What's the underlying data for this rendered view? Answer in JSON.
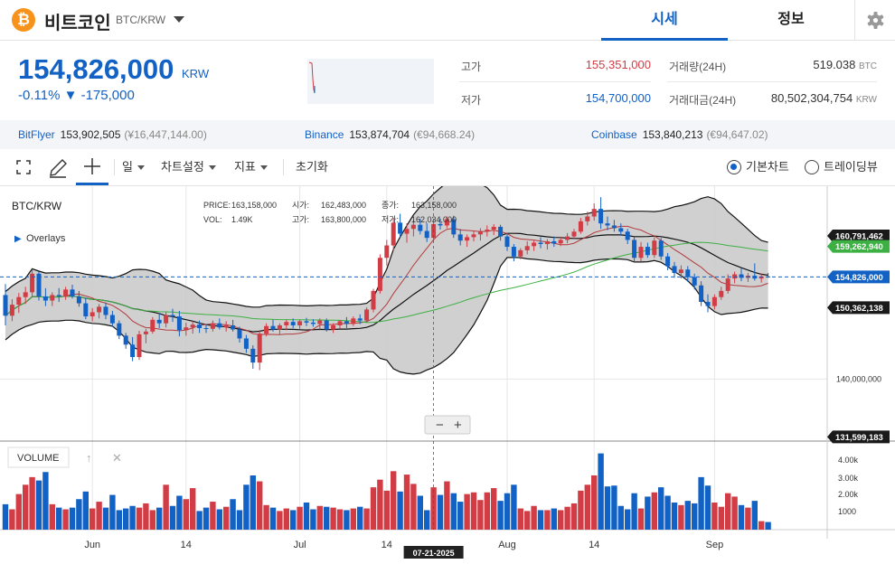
{
  "header": {
    "coin_symbol_glyph": "₿",
    "coin_name": "비트코인",
    "pair": "BTC/KRW",
    "tabs": [
      {
        "label": "시세"
      },
      {
        "label": "정보"
      }
    ]
  },
  "summary": {
    "price": "154,826,000",
    "price_unit": "KRW",
    "change": "-0.11% ▼ -175,000",
    "high_label": "고가",
    "high": "155,351,000",
    "low_label": "저가",
    "low": "154,700,000",
    "volume_label": "거래량(24H)",
    "volume": "519.038",
    "volume_unit": "BTC",
    "amount_label": "거래대금(24H)",
    "amount": "80,502,304,754",
    "amount_unit": "KRW"
  },
  "exchanges": [
    {
      "name": "BitFlyer",
      "price": "153,902,505",
      "sub": "(¥16,447,144.00)"
    },
    {
      "name": "Binance",
      "price": "153,874,704",
      "sub": "(€94,668.24)"
    },
    {
      "name": "Coinbase",
      "price": "153,840,213",
      "sub": "(€94,647.02)"
    }
  ],
  "toolbar": {
    "interval": "일",
    "chart_settings": "차트설정",
    "indicators": "지표",
    "reset": "초기화",
    "basic_chart": "기본차트",
    "tradingview": "트레이딩뷰"
  },
  "colors": {
    "accent": "#1261c4",
    "up": "#d13c45",
    "down": "#1261c4",
    "ma_long": "#3cb043",
    "ma_short": "#b2393c"
  },
  "chart_data": {
    "type": "candlestick",
    "symbol": "BTC/KRW",
    "overlays_label": "Overlays",
    "ohlc_readout": {
      "price_label": "PRICE:",
      "price": "163,158,000",
      "open_label": "시가:",
      "open": "162,483,000",
      "close_label": "종가:",
      "close": "163,158,000",
      "vol_label": "VOL:",
      "vol": "1.49K",
      "high_label": "고가:",
      "high": "163,800,000",
      "low_label": "저가:",
      "low": "162,034,000"
    },
    "x_ticks": [
      {
        "label": "Jun",
        "index": 13
      },
      {
        "label": "14",
        "index": 27
      },
      {
        "label": "Jul",
        "index": 44
      },
      {
        "label": "14",
        "index": 57
      },
      {
        "label": "Aug",
        "index": 75
      },
      {
        "label": "14",
        "index": 88
      },
      {
        "label": "Sep",
        "index": 106
      }
    ],
    "crosshair_date": "07-21-2025",
    "crosshair_index": 64,
    "y_ticks": [
      {
        "label": "140,000,000",
        "value": 140000000
      }
    ],
    "y_range": [
      131000000,
      168000000
    ],
    "price_badges": [
      {
        "label": "160,791,462",
        "value": 160791462,
        "style": "dark"
      },
      {
        "label": "159,262,940",
        "value": 159262940,
        "style": "green"
      },
      {
        "label": "154,826,000",
        "value": 154826000,
        "style": "blue"
      },
      {
        "label": "150,362,138",
        "value": 150362138,
        "style": "dark"
      },
      {
        "label": "131,599,183",
        "value": 131599183,
        "style": "dark"
      }
    ],
    "current_price": 154826000,
    "volume_label": "VOLUME",
    "volume_ticks": [
      "4.00k",
      "3.00k",
      "2.00k",
      "1000"
    ],
    "volume_max": 4800,
    "candles": [
      {
        "o": 152200000,
        "h": 153800000,
        "l": 147800000,
        "c": 149200000,
        "v": 1500
      },
      {
        "o": 149200000,
        "h": 151600000,
        "l": 148400000,
        "c": 150800000,
        "v": 1200
      },
      {
        "o": 150800000,
        "h": 152500000,
        "l": 149600000,
        "c": 151900000,
        "v": 2100
      },
      {
        "o": 151900000,
        "h": 153400000,
        "l": 150900000,
        "c": 152600000,
        "v": 2650
      },
      {
        "o": 152600000,
        "h": 155800000,
        "l": 151900000,
        "c": 155300000,
        "v": 3100
      },
      {
        "o": 155300000,
        "h": 155600000,
        "l": 151400000,
        "c": 152000000,
        "v": 2900
      },
      {
        "o": 152000000,
        "h": 153200000,
        "l": 150600000,
        "c": 151400000,
        "v": 3400
      },
      {
        "o": 151400000,
        "h": 152600000,
        "l": 150600000,
        "c": 152200000,
        "v": 1500
      },
      {
        "o": 152200000,
        "h": 153200000,
        "l": 151200000,
        "c": 152000000,
        "v": 1300
      },
      {
        "o": 152000000,
        "h": 153400000,
        "l": 151500000,
        "c": 153000000,
        "v": 1200
      },
      {
        "o": 153000000,
        "h": 153700000,
        "l": 151700000,
        "c": 152000000,
        "v": 1300
      },
      {
        "o": 152000000,
        "h": 152800000,
        "l": 150500000,
        "c": 151000000,
        "v": 1800
      },
      {
        "o": 151000000,
        "h": 151800000,
        "l": 148700000,
        "c": 149100000,
        "v": 2250
      },
      {
        "o": 149100000,
        "h": 150300000,
        "l": 148400000,
        "c": 149700000,
        "v": 1250
      },
      {
        "o": 149700000,
        "h": 150900000,
        "l": 148800000,
        "c": 150500000,
        "v": 1650
      },
      {
        "o": 150500000,
        "h": 151100000,
        "l": 148700000,
        "c": 149300000,
        "v": 1300
      },
      {
        "o": 149300000,
        "h": 149900000,
        "l": 147600000,
        "c": 148100000,
        "v": 2050
      },
      {
        "o": 148100000,
        "h": 148500000,
        "l": 145800000,
        "c": 146300000,
        "v": 1150
      },
      {
        "o": 146300000,
        "h": 146700000,
        "l": 144400000,
        "c": 145000000,
        "v": 1250
      },
      {
        "o": 145000000,
        "h": 146100000,
        "l": 142600000,
        "c": 143200000,
        "v": 1400
      },
      {
        "o": 143200000,
        "h": 147000000,
        "l": 142800000,
        "c": 146500000,
        "v": 1300
      },
      {
        "o": 146500000,
        "h": 147300000,
        "l": 145200000,
        "c": 146900000,
        "v": 1550
      },
      {
        "o": 146900000,
        "h": 149000000,
        "l": 146600000,
        "c": 148600000,
        "v": 1150
      },
      {
        "o": 148600000,
        "h": 149600000,
        "l": 147400000,
        "c": 148100000,
        "v": 1300
      },
      {
        "o": 148100000,
        "h": 149700000,
        "l": 147500000,
        "c": 149300000,
        "v": 2650
      },
      {
        "o": 149300000,
        "h": 150200000,
        "l": 148300000,
        "c": 149100000,
        "v": 1400
      },
      {
        "o": 149100000,
        "h": 149900000,
        "l": 146200000,
        "c": 147100000,
        "v": 2000
      },
      {
        "o": 147100000,
        "h": 148200000,
        "l": 146300000,
        "c": 147500000,
        "v": 1800
      },
      {
        "o": 147500000,
        "h": 148400000,
        "l": 146600000,
        "c": 147900000,
        "v": 2450
      },
      {
        "o": 147900000,
        "h": 148500000,
        "l": 146700000,
        "c": 147400000,
        "v": 1100
      },
      {
        "o": 147400000,
        "h": 148000000,
        "l": 146700000,
        "c": 147300000,
        "v": 1300
      },
      {
        "o": 147300000,
        "h": 148500000,
        "l": 146900000,
        "c": 148100000,
        "v": 1650
      },
      {
        "o": 148100000,
        "h": 148800000,
        "l": 147200000,
        "c": 147500000,
        "v": 1200
      },
      {
        "o": 147500000,
        "h": 148400000,
        "l": 146900000,
        "c": 147800000,
        "v": 1350
      },
      {
        "o": 147800000,
        "h": 148600000,
        "l": 146900000,
        "c": 147200000,
        "v": 1800
      },
      {
        "o": 147200000,
        "h": 147600000,
        "l": 145300000,
        "c": 145900000,
        "v": 1150
      },
      {
        "o": 145900000,
        "h": 146400000,
        "l": 143800000,
        "c": 144400000,
        "v": 2650
      },
      {
        "o": 144400000,
        "h": 144900000,
        "l": 141500000,
        "c": 142400000,
        "v": 3200
      },
      {
        "o": 142400000,
        "h": 147100000,
        "l": 141300000,
        "c": 146600000,
        "v": 2850
      },
      {
        "o": 146600000,
        "h": 148100000,
        "l": 146200000,
        "c": 147700000,
        "v": 1450
      },
      {
        "o": 147700000,
        "h": 148600000,
        "l": 146900000,
        "c": 147200000,
        "v": 1300
      },
      {
        "o": 147200000,
        "h": 148100000,
        "l": 146500000,
        "c": 147800000,
        "v": 1100
      },
      {
        "o": 147800000,
        "h": 148600000,
        "l": 147100000,
        "c": 148300000,
        "v": 1250
      },
      {
        "o": 148300000,
        "h": 148800000,
        "l": 147400000,
        "c": 147800000,
        "v": 1150
      },
      {
        "o": 147800000,
        "h": 148600000,
        "l": 147300000,
        "c": 148400000,
        "v": 1350
      },
      {
        "o": 148400000,
        "h": 148900000,
        "l": 147700000,
        "c": 148200000,
        "v": 1600
      },
      {
        "o": 148200000,
        "h": 148700000,
        "l": 147600000,
        "c": 148000000,
        "v": 1200
      },
      {
        "o": 148000000,
        "h": 148800000,
        "l": 147200000,
        "c": 148500000,
        "v": 1400
      },
      {
        "o": 148500000,
        "h": 148800000,
        "l": 146900000,
        "c": 147200000,
        "v": 1350
      },
      {
        "o": 147200000,
        "h": 148100000,
        "l": 146700000,
        "c": 147800000,
        "v": 1300
      },
      {
        "o": 147800000,
        "h": 148600000,
        "l": 147300000,
        "c": 148400000,
        "v": 1200
      },
      {
        "o": 148400000,
        "h": 149000000,
        "l": 147400000,
        "c": 148000000,
        "v": 1150
      },
      {
        "o": 148000000,
        "h": 149100000,
        "l": 147700000,
        "c": 148800000,
        "v": 1250
      },
      {
        "o": 148800000,
        "h": 149400000,
        "l": 148000000,
        "c": 148500000,
        "v": 1350
      },
      {
        "o": 148500000,
        "h": 150400000,
        "l": 148200000,
        "c": 150100000,
        "v": 1250
      },
      {
        "o": 150100000,
        "h": 153100000,
        "l": 149700000,
        "c": 152800000,
        "v": 2500
      },
      {
        "o": 152800000,
        "h": 158100000,
        "l": 152400000,
        "c": 157600000,
        "v": 2950
      },
      {
        "o": 157600000,
        "h": 160200000,
        "l": 156500000,
        "c": 159400000,
        "v": 2300
      },
      {
        "o": 159400000,
        "h": 163400000,
        "l": 158600000,
        "c": 162700000,
        "v": 3450
      },
      {
        "o": 162700000,
        "h": 164000000,
        "l": 160600000,
        "c": 161100000,
        "v": 2250
      },
      {
        "o": 161100000,
        "h": 162600000,
        "l": 159800000,
        "c": 161800000,
        "v": 3250
      },
      {
        "o": 161800000,
        "h": 163100000,
        "l": 160700000,
        "c": 162400000,
        "v": 2700
      },
      {
        "o": 162400000,
        "h": 163300000,
        "l": 161000000,
        "c": 161500000,
        "v": 2000
      },
      {
        "o": 161500000,
        "h": 162600000,
        "l": 159900000,
        "c": 160500000,
        "v": 1150
      },
      {
        "o": 160500000,
        "h": 162800000,
        "l": 160100000,
        "c": 162500000,
        "v": 2500
      },
      {
        "o": 162500000,
        "h": 163300000,
        "l": 161700000,
        "c": 162300000,
        "v": 2050
      },
      {
        "o": 162300000,
        "h": 163600000,
        "l": 161900000,
        "c": 163200000,
        "v": 2850
      },
      {
        "o": 163200000,
        "h": 163700000,
        "l": 160500000,
        "c": 161000000,
        "v": 2150
      },
      {
        "o": 161000000,
        "h": 161800000,
        "l": 159400000,
        "c": 160100000,
        "v": 1650
      },
      {
        "o": 160100000,
        "h": 161000000,
        "l": 159200000,
        "c": 160600000,
        "v": 2100
      },
      {
        "o": 160600000,
        "h": 161500000,
        "l": 160000000,
        "c": 161000000,
        "v": 2200
      },
      {
        "o": 161000000,
        "h": 161900000,
        "l": 160100000,
        "c": 161500000,
        "v": 1750
      },
      {
        "o": 161500000,
        "h": 162300000,
        "l": 160700000,
        "c": 161700000,
        "v": 2200
      },
      {
        "o": 161700000,
        "h": 162500000,
        "l": 160900000,
        "c": 162100000,
        "v": 2450
      },
      {
        "o": 162100000,
        "h": 162400000,
        "l": 160100000,
        "c": 160700000,
        "v": 1700
      },
      {
        "o": 160700000,
        "h": 161100000,
        "l": 158600000,
        "c": 159200000,
        "v": 2150
      },
      {
        "o": 159200000,
        "h": 159600000,
        "l": 157100000,
        "c": 157800000,
        "v": 2650
      },
      {
        "o": 157800000,
        "h": 159000000,
        "l": 157400000,
        "c": 158700000,
        "v": 1250
      },
      {
        "o": 158700000,
        "h": 160000000,
        "l": 158100000,
        "c": 159300000,
        "v": 1100
      },
      {
        "o": 159300000,
        "h": 160100000,
        "l": 158600000,
        "c": 159800000,
        "v": 1400
      },
      {
        "o": 159800000,
        "h": 160600000,
        "l": 159000000,
        "c": 159600000,
        "v": 1150
      },
      {
        "o": 159600000,
        "h": 160300000,
        "l": 158800000,
        "c": 160000000,
        "v": 1150
      },
      {
        "o": 160000000,
        "h": 160700000,
        "l": 159200000,
        "c": 159700000,
        "v": 1250
      },
      {
        "o": 159700000,
        "h": 160600000,
        "l": 159300000,
        "c": 160200000,
        "v": 1150
      },
      {
        "o": 160200000,
        "h": 161200000,
        "l": 159700000,
        "c": 160700000,
        "v": 1350
      },
      {
        "o": 160700000,
        "h": 161800000,
        "l": 160400000,
        "c": 161400000,
        "v": 1550
      },
      {
        "o": 161400000,
        "h": 163400000,
        "l": 161100000,
        "c": 162900000,
        "v": 2300
      },
      {
        "o": 162900000,
        "h": 164300000,
        "l": 162300000,
        "c": 163600000,
        "v": 2650
      },
      {
        "o": 163600000,
        "h": 165500000,
        "l": 163000000,
        "c": 164700000,
        "v": 3200
      },
      {
        "o": 164700000,
        "h": 166400000,
        "l": 161800000,
        "c": 162600000,
        "v": 4500
      },
      {
        "o": 162600000,
        "h": 163600000,
        "l": 161600000,
        "c": 162300000,
        "v": 2550
      },
      {
        "o": 162300000,
        "h": 163100000,
        "l": 161400000,
        "c": 161900000,
        "v": 2600
      },
      {
        "o": 161900000,
        "h": 162600000,
        "l": 160800000,
        "c": 161400000,
        "v": 1400
      },
      {
        "o": 161400000,
        "h": 161800000,
        "l": 159600000,
        "c": 160200000,
        "v": 1200
      },
      {
        "o": 160200000,
        "h": 160600000,
        "l": 157000000,
        "c": 157600000,
        "v": 2150
      },
      {
        "o": 157600000,
        "h": 159900000,
        "l": 157100000,
        "c": 159200000,
        "v": 1250
      },
      {
        "o": 159200000,
        "h": 159800000,
        "l": 157600000,
        "c": 158000000,
        "v": 1950
      },
      {
        "o": 158000000,
        "h": 160600000,
        "l": 157600000,
        "c": 160100000,
        "v": 2200
      },
      {
        "o": 160100000,
        "h": 160500000,
        "l": 157300000,
        "c": 157800000,
        "v": 2500
      },
      {
        "o": 157800000,
        "h": 158300000,
        "l": 155800000,
        "c": 156400000,
        "v": 2000
      },
      {
        "o": 156400000,
        "h": 157000000,
        "l": 154700000,
        "c": 155400000,
        "v": 1600
      },
      {
        "o": 155400000,
        "h": 156500000,
        "l": 154600000,
        "c": 155900000,
        "v": 1450
      },
      {
        "o": 155900000,
        "h": 156400000,
        "l": 154100000,
        "c": 154800000,
        "v": 1700
      },
      {
        "o": 154800000,
        "h": 155300000,
        "l": 153000000,
        "c": 153600000,
        "v": 1550
      },
      {
        "o": 153600000,
        "h": 154200000,
        "l": 150600000,
        "c": 151200000,
        "v": 3100
      },
      {
        "o": 151200000,
        "h": 152300000,
        "l": 149700000,
        "c": 150600000,
        "v": 2600
      },
      {
        "o": 150600000,
        "h": 152300000,
        "l": 150100000,
        "c": 151900000,
        "v": 1600
      },
      {
        "o": 151900000,
        "h": 153400000,
        "l": 151500000,
        "c": 152800000,
        "v": 1350
      },
      {
        "o": 152800000,
        "h": 155200000,
        "l": 152400000,
        "c": 154600000,
        "v": 2150
      },
      {
        "o": 154600000,
        "h": 155600000,
        "l": 153900000,
        "c": 155200000,
        "v": 1950
      },
      {
        "o": 155200000,
        "h": 156100000,
        "l": 154200000,
        "c": 154700000,
        "v": 1450
      },
      {
        "o": 154700000,
        "h": 155400000,
        "l": 154100000,
        "c": 155000000,
        "v": 1300
      },
      {
        "o": 155000000,
        "h": 156800000,
        "l": 154300000,
        "c": 154600000,
        "v": 1700
      },
      {
        "o": 154600000,
        "h": 155300000,
        "l": 154000000,
        "c": 154900000,
        "v": 500
      },
      {
        "o": 154900000,
        "h": 155400000,
        "l": 154700000,
        "c": 154826000,
        "v": 450
      }
    ]
  }
}
